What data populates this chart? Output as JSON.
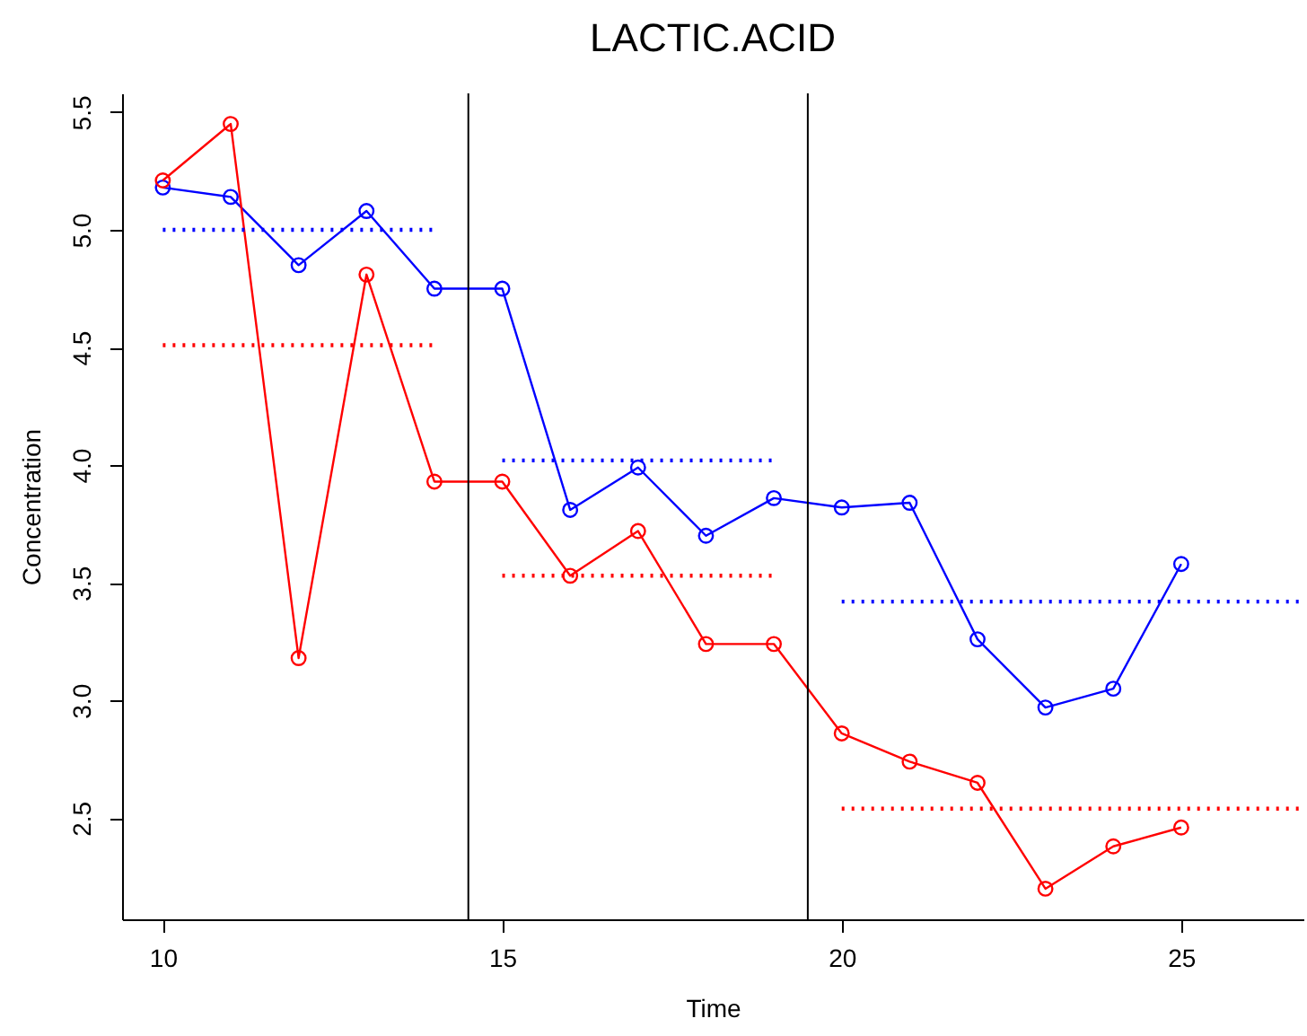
{
  "chart_data": {
    "type": "line",
    "title": "LACTIC.ACID",
    "xlabel": "Time",
    "ylabel": "Concentration",
    "x": [
      10,
      11,
      12,
      13,
      14,
      15,
      16,
      17,
      18,
      19,
      20,
      21,
      22,
      23,
      24,
      25
    ],
    "series": [
      {
        "color": "#0000ff",
        "values": [
          5.18,
          5.14,
          4.85,
          5.08,
          4.75,
          4.75,
          3.81,
          3.99,
          3.7,
          3.86,
          3.82,
          3.84,
          3.26,
          2.97,
          3.05,
          3.58
        ]
      },
      {
        "color": "#ff0000",
        "values": [
          5.21,
          5.45,
          3.18,
          4.81,
          3.93,
          3.93,
          3.53,
          3.72,
          3.24,
          3.24,
          2.86,
          2.74,
          2.65,
          2.2,
          2.38,
          2.46
        ]
      },
      {
        "color": "#0000ff",
        "x": [
          10,
          14
        ],
        "values": [
          5.0,
          5.0
        ],
        "line_style": "dotted",
        "marker": "none"
      },
      {
        "color": "#ff0000",
        "x": [
          10,
          14
        ],
        "values": [
          4.51,
          4.51
        ],
        "line_style": "dotted",
        "marker": "none"
      },
      {
        "color": "#0000ff",
        "x": [
          15,
          19
        ],
        "values": [
          4.02,
          4.02
        ],
        "line_style": "dotted",
        "marker": "none"
      },
      {
        "color": "#ff0000",
        "x": [
          15,
          19
        ],
        "values": [
          3.53,
          3.53
        ],
        "line_style": "dotted",
        "marker": "none"
      },
      {
        "color": "#0000ff",
        "x": [
          20,
          26.8
        ],
        "values": [
          3.42,
          3.42
        ],
        "line_style": "dotted",
        "marker": "none"
      },
      {
        "color": "#ff0000",
        "x": [
          20,
          26.8
        ],
        "values": [
          2.54,
          2.54
        ],
        "line_style": "dotted",
        "marker": "none"
      }
    ],
    "xlim": [
      9.4,
      26.8
    ],
    "xticks": [
      10,
      15,
      20,
      25
    ],
    "ylim": [
      2.07,
      5.58
    ],
    "yticks": [
      2.5,
      {
        "value": 3,
        "label": "3.0"
      },
      3.5,
      {
        "value": 4,
        "label": "4.0"
      },
      4.5,
      {
        "value": 5,
        "label": "5.0"
      },
      5.5
    ],
    "ref_lines": [
      {
        "axis": "x",
        "value": 14.5,
        "color": "#000000"
      },
      {
        "axis": "x",
        "value": 19.5,
        "color": "#000000"
      }
    ],
    "marker": "circle",
    "line_style": "solid",
    "grid": false
  }
}
